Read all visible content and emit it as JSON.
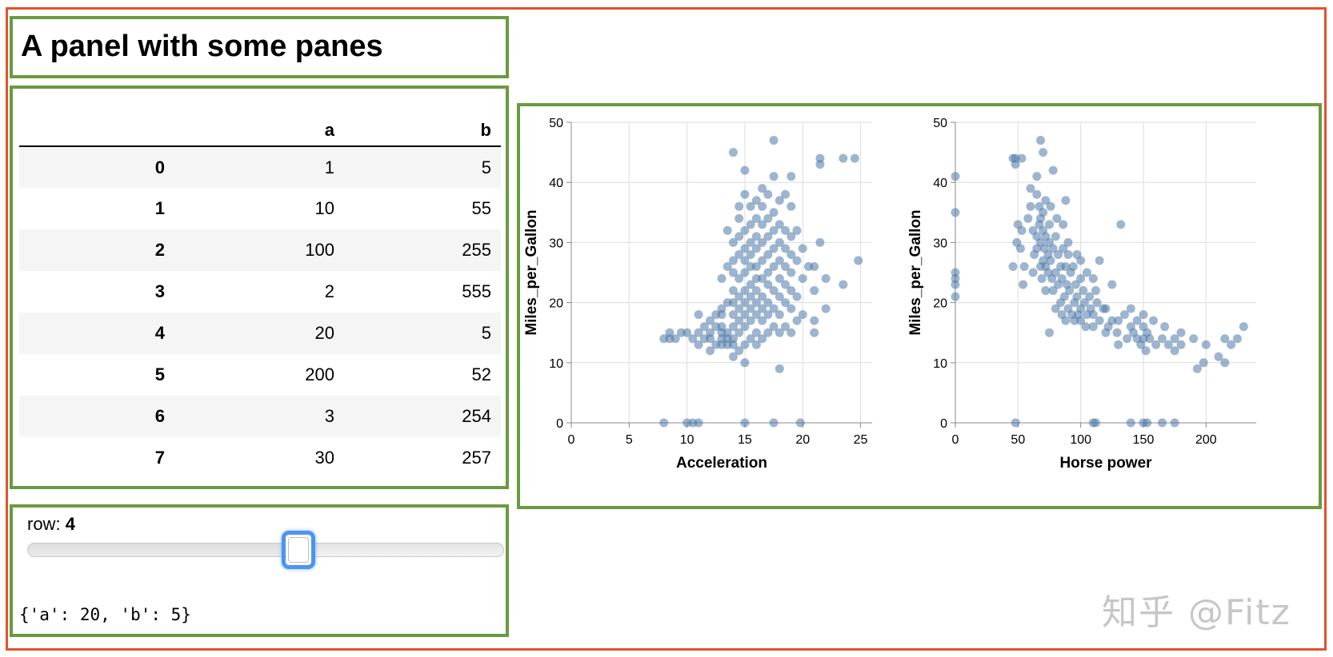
{
  "panel": {
    "title": "A panel with some panes"
  },
  "table": {
    "columns": [
      "",
      "a",
      "b"
    ],
    "rows": [
      {
        "index": "0",
        "a": "1",
        "b": "5"
      },
      {
        "index": "1",
        "a": "10",
        "b": "55"
      },
      {
        "index": "2",
        "a": "100",
        "b": "255"
      },
      {
        "index": "3",
        "a": "2",
        "b": "555"
      },
      {
        "index": "4",
        "a": "20",
        "b": "5"
      },
      {
        "index": "5",
        "a": "200",
        "b": "52"
      },
      {
        "index": "6",
        "a": "3",
        "b": "254"
      },
      {
        "index": "7",
        "a": "30",
        "b": "257"
      }
    ]
  },
  "slider": {
    "label": "row:",
    "value": "4",
    "min": 0,
    "max": 7,
    "current": 4,
    "output": "{'a': 20, 'b': 5}"
  },
  "colors": {
    "outer_border": "#e2532d",
    "pane_border": "#6a9a40",
    "point": "#4c78a8",
    "handle": "#4b95ee"
  },
  "watermark": "知乎 @Fitz",
  "chart_data": [
    {
      "type": "scatter",
      "title": "",
      "xlabel": "Acceleration",
      "ylabel": "Miles_per_Gallon",
      "xlim": [
        0,
        26
      ],
      "ylim": [
        0,
        50
      ],
      "xticks": [
        0,
        5,
        10,
        15,
        20,
        25
      ],
      "yticks": [
        0,
        10,
        20,
        30,
        40,
        50
      ],
      "grid": true,
      "points": [
        [
          8,
          14
        ],
        [
          8.5,
          14
        ],
        [
          8.5,
          15
        ],
        [
          9,
          14
        ],
        [
          9.5,
          15
        ],
        [
          10,
          15
        ],
        [
          10.5,
          14
        ],
        [
          11,
          13
        ],
        [
          11,
          15
        ],
        [
          11,
          18
        ],
        [
          11.5,
          14
        ],
        [
          11.5,
          16
        ],
        [
          12,
          12
        ],
        [
          12,
          14
        ],
        [
          12,
          15
        ],
        [
          12,
          17
        ],
        [
          12.5,
          13
        ],
        [
          12.5,
          16
        ],
        [
          12.5,
          18
        ],
        [
          13,
          13
        ],
        [
          13,
          14
        ],
        [
          13,
          15
        ],
        [
          13,
          16
        ],
        [
          13,
          18
        ],
        [
          13,
          19
        ],
        [
          13,
          24
        ],
        [
          13.5,
          13
        ],
        [
          13.5,
          14
        ],
        [
          13.5,
          15
        ],
        [
          13.5,
          20
        ],
        [
          13.5,
          26
        ],
        [
          13.5,
          32
        ],
        [
          14,
          11
        ],
        [
          14,
          13
        ],
        [
          14,
          14
        ],
        [
          14,
          16
        ],
        [
          14,
          18
        ],
        [
          14,
          20
        ],
        [
          14,
          22
        ],
        [
          14,
          25
        ],
        [
          14,
          27
        ],
        [
          14,
          30
        ],
        [
          14,
          45
        ],
        [
          14.5,
          12
        ],
        [
          14.5,
          15
        ],
        [
          14.5,
          17
        ],
        [
          14.5,
          19
        ],
        [
          14.5,
          21
        ],
        [
          14.5,
          24
        ],
        [
          14.5,
          28
        ],
        [
          14.5,
          31
        ],
        [
          14.5,
          34
        ],
        [
          14.5,
          36
        ],
        [
          15,
          10
        ],
        [
          15,
          13
        ],
        [
          15,
          16
        ],
        [
          15,
          18
        ],
        [
          15,
          20
        ],
        [
          15,
          22
        ],
        [
          15,
          25
        ],
        [
          15,
          27
        ],
        [
          15,
          29
        ],
        [
          15,
          32
        ],
        [
          15,
          38
        ],
        [
          15,
          42
        ],
        [
          15.5,
          14
        ],
        [
          15.5,
          17
        ],
        [
          15.5,
          19
        ],
        [
          15.5,
          21
        ],
        [
          15.5,
          23
        ],
        [
          15.5,
          26
        ],
        [
          15.5,
          28
        ],
        [
          15.5,
          30
        ],
        [
          15.5,
          33
        ],
        [
          15.5,
          36
        ],
        [
          16,
          13
        ],
        [
          16,
          15
        ],
        [
          16,
          18
        ],
        [
          16,
          20
        ],
        [
          16,
          22
        ],
        [
          16,
          24
        ],
        [
          16,
          26
        ],
        [
          16,
          29
        ],
        [
          16,
          31
        ],
        [
          16,
          34
        ],
        [
          16,
          37
        ],
        [
          16.5,
          14
        ],
        [
          16.5,
          17
        ],
        [
          16.5,
          19
        ],
        [
          16.5,
          21
        ],
        [
          16.5,
          24
        ],
        [
          16.5,
          27
        ],
        [
          16.5,
          30
        ],
        [
          16.5,
          33
        ],
        [
          16.5,
          36
        ],
        [
          16.5,
          39
        ],
        [
          17,
          15
        ],
        [
          17,
          18
        ],
        [
          17,
          20
        ],
        [
          17,
          23
        ],
        [
          17,
          25
        ],
        [
          17,
          28
        ],
        [
          17,
          31
        ],
        [
          17,
          34
        ],
        [
          17,
          38
        ],
        [
          17.5,
          16
        ],
        [
          17.5,
          19
        ],
        [
          17.5,
          22
        ],
        [
          17.5,
          26
        ],
        [
          17.5,
          29
        ],
        [
          17.5,
          32
        ],
        [
          17.5,
          35
        ],
        [
          17.5,
          41
        ],
        [
          17.5,
          47
        ],
        [
          18,
          9
        ],
        [
          18,
          15
        ],
        [
          18,
          18
        ],
        [
          18,
          21
        ],
        [
          18,
          24
        ],
        [
          18,
          27
        ],
        [
          18,
          30
        ],
        [
          18,
          33
        ],
        [
          18,
          37
        ],
        [
          18.5,
          16
        ],
        [
          18.5,
          20
        ],
        [
          18.5,
          23
        ],
        [
          18.5,
          26
        ],
        [
          18.5,
          29
        ],
        [
          18.5,
          32
        ],
        [
          18.5,
          38
        ],
        [
          19,
          15
        ],
        [
          19,
          19
        ],
        [
          19,
          22
        ],
        [
          19,
          25
        ],
        [
          19,
          28
        ],
        [
          19,
          31
        ],
        [
          19,
          36
        ],
        [
          19,
          41
        ],
        [
          19.5,
          17
        ],
        [
          19.5,
          21
        ],
        [
          19.5,
          27
        ],
        [
          19.5,
          32
        ],
        [
          20,
          18
        ],
        [
          20,
          24
        ],
        [
          20,
          29
        ],
        [
          20.5,
          26
        ],
        [
          21,
          15
        ],
        [
          21,
          17
        ],
        [
          21,
          22
        ],
        [
          21,
          26
        ],
        [
          21.5,
          30
        ],
        [
          21.5,
          43
        ],
        [
          21.5,
          44
        ],
        [
          22,
          19
        ],
        [
          22,
          24
        ],
        [
          23.5,
          23
        ],
        [
          23.5,
          44
        ],
        [
          24.5,
          44
        ],
        [
          24.8,
          27
        ],
        [
          8,
          0
        ],
        [
          10,
          0
        ],
        [
          10.5,
          0
        ],
        [
          11,
          0
        ],
        [
          15,
          0
        ],
        [
          17.5,
          0
        ],
        [
          19.8,
          0
        ]
      ]
    },
    {
      "type": "scatter",
      "title": "",
      "xlabel": "Horse power",
      "ylabel": "Miles_per_Gallon",
      "xlim": [
        0,
        240
      ],
      "ylim": [
        0,
        50
      ],
      "xticks": [
        0,
        50,
        100,
        150,
        200
      ],
      "yticks": [
        0,
        10,
        20,
        30,
        40,
        50
      ],
      "grid": true,
      "points": [
        [
          0,
          21
        ],
        [
          0,
          23
        ],
        [
          0,
          24
        ],
        [
          0,
          25
        ],
        [
          0,
          35
        ],
        [
          0,
          41
        ],
        [
          46,
          26
        ],
        [
          46,
          44
        ],
        [
          48,
          43
        ],
        [
          48,
          44
        ],
        [
          49,
          30
        ],
        [
          50,
          33
        ],
        [
          52,
          29
        ],
        [
          53,
          32
        ],
        [
          53,
          44
        ],
        [
          54,
          23
        ],
        [
          55,
          26
        ],
        [
          58,
          34
        ],
        [
          60,
          36
        ],
        [
          60,
          39
        ],
        [
          62,
          25
        ],
        [
          62,
          32
        ],
        [
          63,
          28
        ],
        [
          65,
          29
        ],
        [
          65,
          31
        ],
        [
          65,
          38
        ],
        [
          65,
          41
        ],
        [
          67,
          33
        ],
        [
          67,
          36
        ],
        [
          68,
          26
        ],
        [
          68,
          30
        ],
        [
          68,
          34
        ],
        [
          68,
          47
        ],
        [
          69,
          24
        ],
        [
          70,
          27
        ],
        [
          70,
          32
        ],
        [
          70,
          35
        ],
        [
          70,
          45
        ],
        [
          71,
          29
        ],
        [
          72,
          22
        ],
        [
          72,
          26
        ],
        [
          72,
          31
        ],
        [
          72,
          37
        ],
        [
          74,
          25
        ],
        [
          74,
          28
        ],
        [
          75,
          15
        ],
        [
          75,
          30
        ],
        [
          75,
          33
        ],
        [
          76,
          27
        ],
        [
          76,
          36
        ],
        [
          77,
          24
        ],
        [
          78,
          22
        ],
        [
          78,
          29
        ],
        [
          78,
          42
        ],
        [
          80,
          19
        ],
        [
          80,
          25
        ],
        [
          80,
          31
        ],
        [
          81,
          34
        ],
        [
          82,
          23
        ],
        [
          82,
          28
        ],
        [
          84,
          20
        ],
        [
          84,
          26
        ],
        [
          85,
          18
        ],
        [
          85,
          24
        ],
        [
          86,
          29
        ],
        [
          86,
          33
        ],
        [
          87,
          21
        ],
        [
          88,
          17
        ],
        [
          88,
          26
        ],
        [
          88,
          37
        ],
        [
          89,
          23
        ],
        [
          90,
          19
        ],
        [
          90,
          28
        ],
        [
          90,
          30
        ],
        [
          91,
          22
        ],
        [
          92,
          25
        ],
        [
          93,
          18
        ],
        [
          94,
          26
        ],
        [
          95,
          20
        ],
        [
          95,
          17
        ],
        [
          96,
          23
        ],
        [
          97,
          21
        ],
        [
          97,
          28
        ],
        [
          98,
          18
        ],
        [
          100,
          17
        ],
        [
          100,
          19
        ],
        [
          100,
          24
        ],
        [
          100,
          27
        ],
        [
          102,
          22
        ],
        [
          103,
          20
        ],
        [
          104,
          16
        ],
        [
          105,
          18
        ],
        [
          105,
          25
        ],
        [
          107,
          21
        ],
        [
          108,
          19
        ],
        [
          110,
          16
        ],
        [
          110,
          18
        ],
        [
          110,
          24
        ],
        [
          112,
          22
        ],
        [
          113,
          20
        ],
        [
          115,
          17
        ],
        [
          115,
          27
        ],
        [
          118,
          19
        ],
        [
          120,
          15
        ],
        [
          120,
          19
        ],
        [
          122,
          16
        ],
        [
          125,
          17
        ],
        [
          125,
          23
        ],
        [
          129,
          15
        ],
        [
          130,
          13
        ],
        [
          130,
          17
        ],
        [
          132,
          33
        ],
        [
          135,
          18
        ],
        [
          137,
          14
        ],
        [
          140,
          16
        ],
        [
          140,
          19
        ],
        [
          142,
          15
        ],
        [
          145,
          14
        ],
        [
          145,
          17
        ],
        [
          148,
          13
        ],
        [
          150,
          14
        ],
        [
          150,
          16
        ],
        [
          150,
          18
        ],
        [
          152,
          12
        ],
        [
          153,
          15
        ],
        [
          155,
          14
        ],
        [
          158,
          17
        ],
        [
          160,
          13
        ],
        [
          165,
          14
        ],
        [
          167,
          16
        ],
        [
          170,
          13
        ],
        [
          175,
          14
        ],
        [
          175,
          12
        ],
        [
          180,
          15
        ],
        [
          180,
          13
        ],
        [
          190,
          14
        ],
        [
          193,
          9
        ],
        [
          198,
          10
        ],
        [
          200,
          13
        ],
        [
          210,
          11
        ],
        [
          215,
          14
        ],
        [
          215,
          10
        ],
        [
          220,
          13
        ],
        [
          225,
          14
        ],
        [
          230,
          16
        ],
        [
          48,
          0
        ],
        [
          110,
          0
        ],
        [
          112,
          0
        ],
        [
          140,
          0
        ],
        [
          150,
          0
        ],
        [
          153,
          0
        ],
        [
          165,
          0
        ],
        [
          175,
          0
        ]
      ]
    }
  ]
}
